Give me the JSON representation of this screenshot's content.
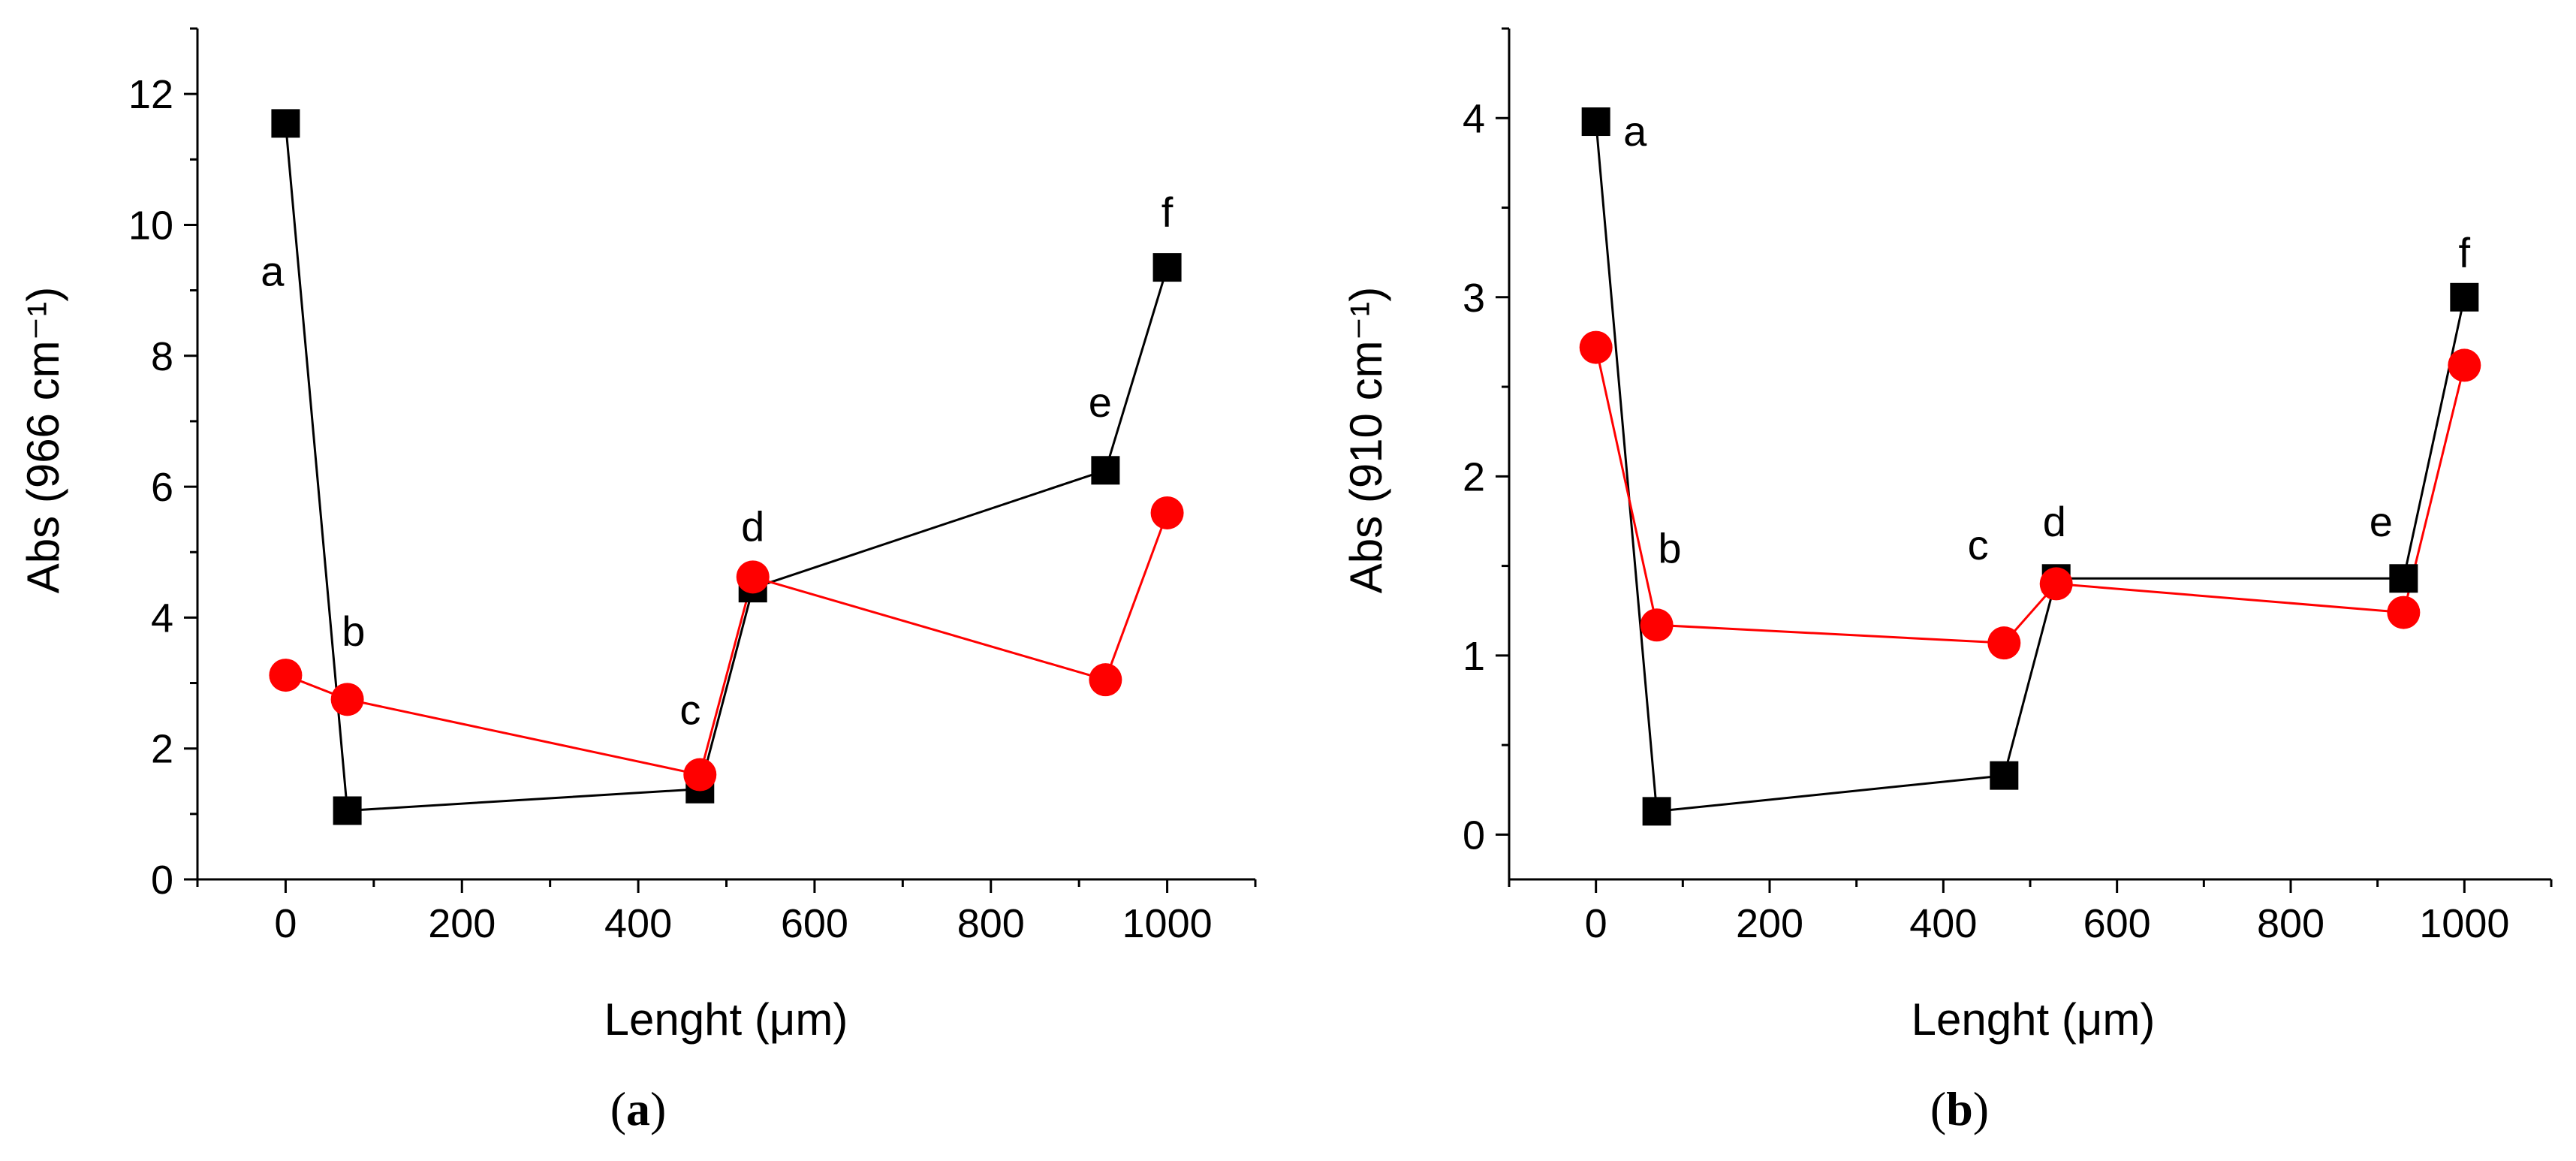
{
  "chart_data": [
    {
      "type": "line",
      "caption": "(a)",
      "caption_letter": "a",
      "xlabel": "Lenght (μm)",
      "ylabel": "Abs (966 cm⁻¹)",
      "xlim": [
        -100,
        1100
      ],
      "ylim": [
        0,
        13
      ],
      "x_ticks": [
        0,
        200,
        400,
        600,
        800,
        1000
      ],
      "y_ticks": [
        0,
        2,
        4,
        6,
        8,
        10,
        12
      ],
      "series": [
        {
          "name": "black-squares",
          "color": "#000000",
          "marker": "square",
          "points": [
            {
              "x": 0,
              "y": 11.55
            },
            {
              "x": 70,
              "y": 1.05
            },
            {
              "x": 470,
              "y": 1.38
            },
            {
              "x": 530,
              "y": 4.45
            },
            {
              "x": 930,
              "y": 6.25
            },
            {
              "x": 1000,
              "y": 9.35
            }
          ]
        },
        {
          "name": "red-circles",
          "color": "#ff0000",
          "marker": "circle",
          "points": [
            {
              "x": 0,
              "y": 3.12
            },
            {
              "x": 70,
              "y": 2.75
            },
            {
              "x": 470,
              "y": 1.6
            },
            {
              "x": 530,
              "y": 4.62
            },
            {
              "x": 930,
              "y": 3.05
            },
            {
              "x": 1000,
              "y": 5.6
            }
          ]
        }
      ],
      "annotations": [
        {
          "text": "a",
          "x": -15,
          "y": 9.3
        },
        {
          "text": "b",
          "x": 77,
          "y": 3.8
        },
        {
          "text": "c",
          "x": 459,
          "y": 2.6
        },
        {
          "text": "d",
          "x": 530,
          "y": 5.4
        },
        {
          "text": "e",
          "x": 924,
          "y": 7.3
        },
        {
          "text": "f",
          "x": 1000,
          "y": 10.2
        }
      ]
    },
    {
      "type": "line",
      "caption": "(b)",
      "caption_letter": "b",
      "xlabel": "Lenght (μm)",
      "ylabel": "Abs (910 cm⁻¹)",
      "xlim": [
        -100,
        1100
      ],
      "ylim": [
        -0.25,
        4.5
      ],
      "x_ticks": [
        0,
        200,
        400,
        600,
        800,
        1000
      ],
      "y_ticks": [
        0,
        1,
        2,
        3,
        4
      ],
      "series": [
        {
          "name": "black-squares",
          "color": "#000000",
          "marker": "square",
          "points": [
            {
              "x": 0,
              "y": 3.98
            },
            {
              "x": 70,
              "y": 0.13
            },
            {
              "x": 470,
              "y": 0.33
            },
            {
              "x": 530,
              "y": 1.43
            },
            {
              "x": 930,
              "y": 1.43
            },
            {
              "x": 1000,
              "y": 3.0
            }
          ]
        },
        {
          "name": "red-circles",
          "color": "#ff0000",
          "marker": "circle",
          "points": [
            {
              "x": 0,
              "y": 2.72
            },
            {
              "x": 70,
              "y": 1.17
            },
            {
              "x": 470,
              "y": 1.07
            },
            {
              "x": 530,
              "y": 1.4
            },
            {
              "x": 930,
              "y": 1.24
            },
            {
              "x": 1000,
              "y": 2.62
            }
          ]
        }
      ],
      "annotations": [
        {
          "text": "a",
          "x": 45,
          "y": 3.93
        },
        {
          "text": "b",
          "x": 85,
          "y": 1.6
        },
        {
          "text": "c",
          "x": 440,
          "y": 1.62
        },
        {
          "text": "d",
          "x": 528,
          "y": 1.75
        },
        {
          "text": "e",
          "x": 904,
          "y": 1.75
        },
        {
          "text": "f",
          "x": 1000,
          "y": 3.25
        }
      ]
    }
  ]
}
